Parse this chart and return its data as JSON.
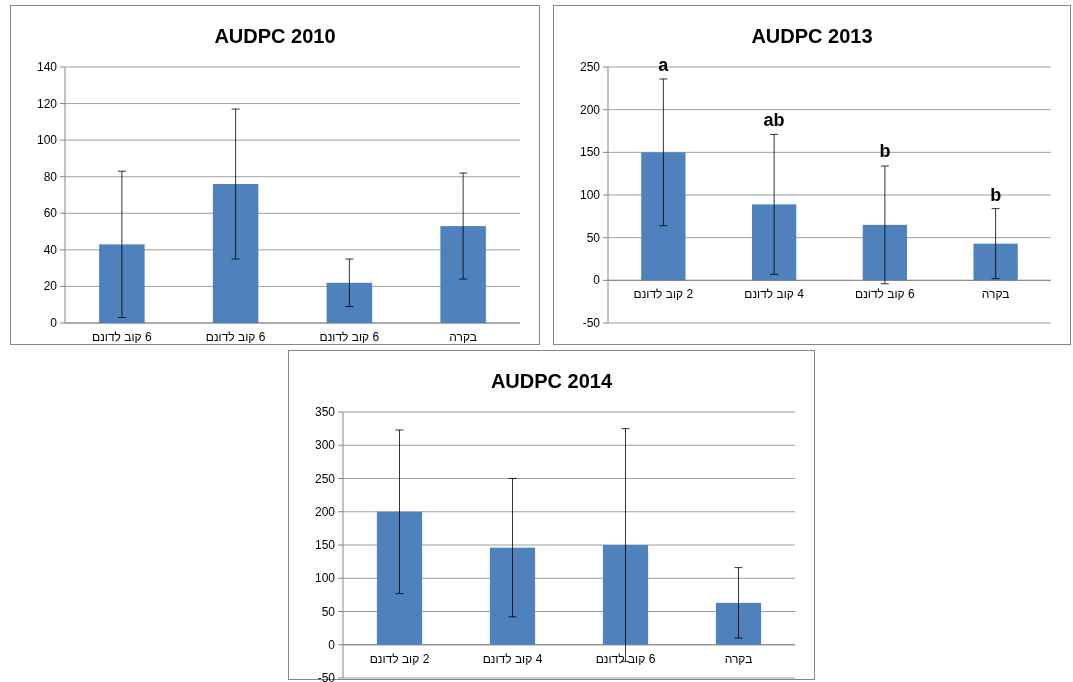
{
  "chart_data": [
    {
      "type": "bar",
      "title": "AUDPC 2010",
      "categories": [
        "6 קוב לדונם",
        "6 קוב לדונם",
        "6 קוב לדונם",
        "בקרה"
      ],
      "values": [
        43,
        76,
        22,
        53
      ],
      "errors": [
        40,
        41,
        13,
        29
      ],
      "color": "#4f81bd",
      "ylim": [
        0,
        140
      ],
      "yticks": [
        0,
        20,
        40,
        60,
        80,
        100,
        120,
        140
      ],
      "grid": "y"
    },
    {
      "type": "bar",
      "title": "AUDPC 2013",
      "categories": [
        "2 קוב לדונם",
        "4 קוב לדונם",
        "6 קוב לדונם",
        "בקרה"
      ],
      "values": [
        150,
        89,
        65,
        43
      ],
      "errors": [
        86,
        82,
        69,
        41
      ],
      "color": "#4f81bd",
      "ylim": [
        -50,
        250
      ],
      "yticks": [
        -50,
        0,
        50,
        100,
        150,
        200,
        250
      ],
      "grid": "y",
      "annotations": [
        {
          "text": "a",
          "x": "2 קוב לדונם",
          "y": 236
        },
        {
          "text": "ab",
          "x": "4 קוב לדונם",
          "y": 171
        },
        {
          "text": "b",
          "x": "6 קוב לדונם",
          "y": 135
        },
        {
          "text": "b",
          "x": "בקרה",
          "y": 84
        }
      ]
    },
    {
      "type": "bar",
      "title": "AUDPC 2014",
      "categories": [
        "2 קוב לדונם",
        "4 קוב לדונם",
        "6 קוב לדונם",
        "בקרה"
      ],
      "values": [
        200,
        146,
        150,
        63
      ],
      "errors": [
        123,
        104,
        175,
        53
      ],
      "color": "#4f81bd",
      "ylim": [
        -50,
        350
      ],
      "yticks": [
        -50,
        0,
        50,
        100,
        150,
        200,
        250,
        300,
        350
      ],
      "grid": "y"
    }
  ]
}
